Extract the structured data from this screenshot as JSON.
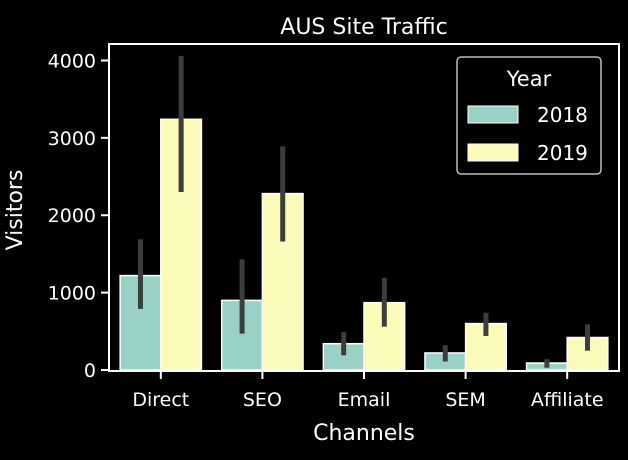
{
  "chart_data": {
    "type": "bar",
    "title": "AUS Site Traffic",
    "xlabel": "Channels",
    "ylabel": "Visitors",
    "ylim": [
      0,
      4200
    ],
    "yticks": [
      0,
      1000,
      2000,
      3000,
      4000
    ],
    "categories": [
      "Direct",
      "SEO",
      "Email",
      "SEM",
      "Affiliate"
    ],
    "legend": {
      "title": "Year",
      "placement": "top-right"
    },
    "grid": false,
    "series": [
      {
        "name": "2018",
        "color": "#99d1c6",
        "values": [
          1220,
          900,
          340,
          220,
          90
        ],
        "err_low": [
          790,
          470,
          190,
          110,
          30
        ],
        "err_high": [
          1690,
          1430,
          490,
          320,
          140
        ]
      },
      {
        "name": "2019",
        "color": "#fafab9",
        "values": [
          3240,
          2280,
          870,
          600,
          420
        ],
        "err_low": [
          2300,
          1660,
          560,
          440,
          250
        ],
        "err_high": [
          4060,
          2890,
          1190,
          740,
          590
        ]
      }
    ],
    "errorbar_color": "#3d3d3d"
  }
}
